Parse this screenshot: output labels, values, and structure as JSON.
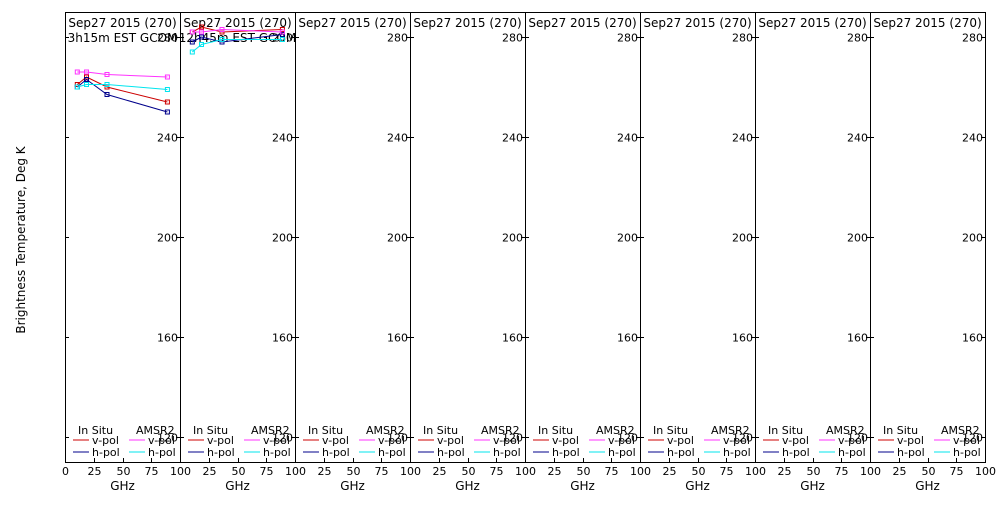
{
  "chart_data": {
    "type": "line",
    "ylabel": "Brightness Temperature, Deg K",
    "xlabel": "GHz",
    "xlim": [
      0,
      100
    ],
    "ylim": [
      110,
      290
    ],
    "yticks": [
      120,
      160,
      200,
      240,
      280
    ],
    "xticks": [
      0,
      25,
      50,
      75,
      100
    ],
    "legend": {
      "insitu_header": "In Situ",
      "amsr2_header": "AMSR2",
      "vpol_label": "v-pol",
      "hpol_label": "h-pol"
    },
    "colors": {
      "insitu_v": "#cc0000",
      "insitu_h": "#00008b",
      "amsr2_v": "#ff33ff",
      "amsr2_h": "#00e5ee"
    },
    "panels": [
      {
        "title": "Sep27 2015 (270)",
        "subtitle": "3h15m EST GCOM",
        "series": [
          {
            "name": "In Situ v-pol",
            "x": [
              10.7,
              18.7,
              36.5,
              89
            ],
            "y": [
              261,
              264,
              260,
              254
            ]
          },
          {
            "name": "In Situ h-pol",
            "x": [
              10.7,
              18.7,
              36.5,
              89
            ],
            "y": [
              260,
              263,
              257,
              250
            ]
          },
          {
            "name": "AMSR2 v-pol",
            "x": [
              10.7,
              18.7,
              36.5,
              89
            ],
            "y": [
              266,
              266,
              265,
              264
            ]
          },
          {
            "name": "AMSR2 h-pol",
            "x": [
              10.7,
              18.7,
              36.5,
              89
            ],
            "y": [
              260,
              261,
              261,
              259
            ]
          }
        ]
      },
      {
        "title": "Sep27 2015 (270)",
        "subtitle": "12h45m EST GCOM",
        "series": [
          {
            "name": "In Situ v-pol",
            "x": [
              10.7,
              18.7,
              36.5,
              89
            ],
            "y": [
              282,
              284,
              282,
              283
            ]
          },
          {
            "name": "In Situ h-pol",
            "x": [
              10.7,
              18.7,
              36.5,
              89
            ],
            "y": [
              278,
              280,
              278,
              281
            ]
          },
          {
            "name": "AMSR2 v-pol",
            "x": [
              10.7,
              18.7,
              36.5,
              89
            ],
            "y": [
              282,
              282,
              283,
              282
            ]
          },
          {
            "name": "AMSR2 h-pol",
            "x": [
              10.7,
              18.7,
              36.5,
              89
            ],
            "y": [
              274,
              277,
              279,
              279
            ]
          }
        ]
      },
      {
        "title": "Sep27 2015 (270)",
        "subtitle": "",
        "series": []
      },
      {
        "title": "Sep27 2015 (270)",
        "subtitle": "",
        "series": []
      },
      {
        "title": "Sep27 2015 (270)",
        "subtitle": "",
        "series": []
      },
      {
        "title": "Sep27 2015 (270)",
        "subtitle": "",
        "series": []
      },
      {
        "title": "Sep27 2015 (270)",
        "subtitle": "",
        "series": []
      },
      {
        "title": "Sep27 2015 (270)",
        "subtitle": "",
        "series": []
      }
    ]
  }
}
